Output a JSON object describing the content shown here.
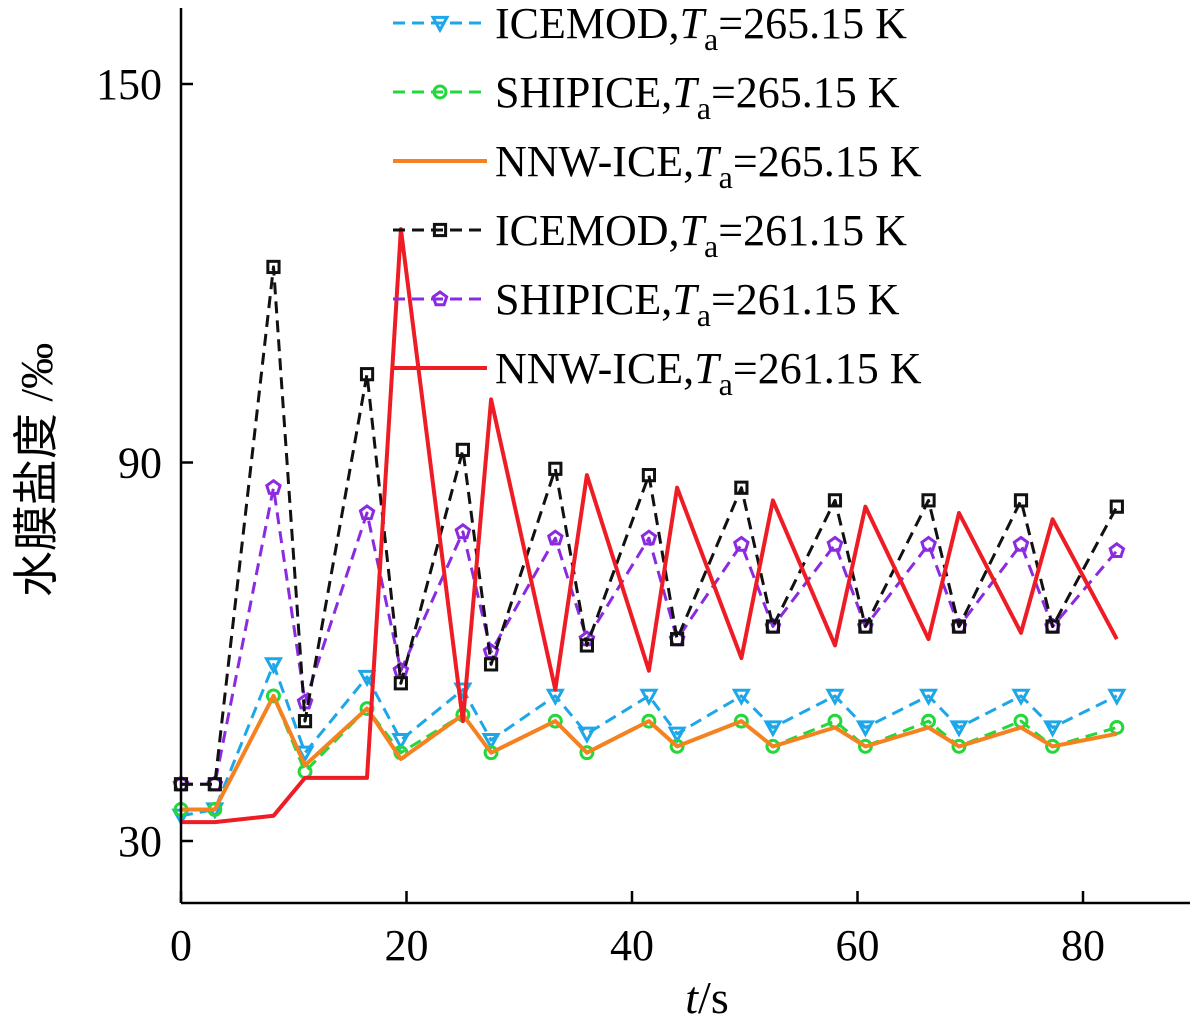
{
  "chart_data": {
    "type": "line",
    "xlabel_italic": "t",
    "xlabel_unit": "/s",
    "ylabel": "水膜盐度 /‰",
    "xlim": [
      0,
      90
    ],
    "ylim": [
      20,
      163
    ],
    "xticks": [
      0,
      20,
      40,
      60,
      80
    ],
    "xtick_labels": [
      "0",
      "20",
      "40",
      "60",
      "80"
    ],
    "yticks": [
      30,
      90,
      150
    ],
    "ytick_labels": [
      "30",
      "90",
      "150"
    ],
    "grid": false,
    "legend_position": "top-right",
    "series": [
      {
        "name_main": "ICEMOD,",
        "name_var": "T",
        "name_sub": "a",
        "name_value": "=265.15 K",
        "color": "#1ea7e8",
        "linestyle": "dashed",
        "marker": "triangle-down",
        "x": [
          0,
          3,
          8.2,
          11,
          16.5,
          19.5,
          25,
          27.5,
          33.2,
          36,
          41.5,
          44,
          49.7,
          52.5,
          58,
          60.7,
          66.3,
          69,
          74.5,
          77.3,
          83
        ],
        "y": [
          34,
          35,
          58,
          44,
          56,
          46,
          54,
          46,
          53,
          47,
          53,
          47,
          53,
          48,
          53,
          48,
          53,
          48,
          53,
          48,
          53
        ]
      },
      {
        "name_main": "SHIPICE,",
        "name_var": "T",
        "name_sub": "a",
        "name_value": "=265.15 K",
        "color": "#22d83a",
        "linestyle": "dashed",
        "marker": "circle",
        "x": [
          0,
          3,
          8.2,
          11,
          16.5,
          19.5,
          25,
          27.5,
          33.2,
          36,
          41.5,
          44,
          49.7,
          52.5,
          58,
          60.7,
          66.3,
          69,
          74.5,
          77.3,
          83
        ],
        "y": [
          35,
          35,
          53,
          41,
          51,
          44,
          50,
          44,
          49,
          44,
          49,
          45,
          49,
          45,
          49,
          45,
          49,
          45,
          49,
          45,
          48
        ]
      },
      {
        "name_main": "NNW-ICE,",
        "name_var": "T",
        "name_sub": "a",
        "name_value": "=265.15 K",
        "color": "#f58220",
        "linestyle": "solid",
        "marker": "none",
        "x": [
          0,
          3,
          8.2,
          11,
          16.5,
          19.5,
          25,
          27.5,
          33.2,
          36,
          41.5,
          44,
          49.7,
          52.5,
          58,
          60.7,
          66.3,
          69,
          74.5,
          77.3,
          83
        ],
        "y": [
          35,
          35,
          53,
          42,
          51,
          43,
          50,
          44,
          49,
          44,
          49,
          45,
          49,
          45,
          48,
          45,
          48,
          45,
          48,
          45,
          47
        ]
      },
      {
        "name_main": "ICEMOD,",
        "name_var": "T",
        "name_sub": "a",
        "name_value": "=261.15 K",
        "color": "#111111",
        "linestyle": "dashed",
        "marker": "square",
        "x": [
          0,
          3,
          8.2,
          11,
          16.5,
          19.5,
          25,
          27.5,
          33.2,
          36,
          41.5,
          44,
          49.7,
          52.5,
          58,
          60.7,
          66.3,
          69,
          74.5,
          77.3,
          83
        ],
        "y": [
          39,
          39,
          121,
          49,
          104,
          55,
          92,
          58,
          89,
          61,
          88,
          62,
          86,
          64,
          84,
          64,
          84,
          64,
          84,
          64,
          83
        ]
      },
      {
        "name_main": "SHIPICE,",
        "name_var": "T",
        "name_sub": "a",
        "name_value": "=261.15 K",
        "color": "#8a2be2",
        "linestyle": "dashed",
        "marker": "pentagon",
        "x": [
          0,
          3,
          8.2,
          11,
          16.5,
          19.5,
          25,
          27.5,
          33.2,
          36,
          41.5,
          44,
          49.7,
          52.5,
          58,
          60.7,
          66.3,
          69,
          74.5,
          77.3,
          83
        ],
        "y": [
          39,
          39,
          86,
          52,
          82,
          57,
          79,
          60,
          78,
          62,
          78,
          62,
          77,
          64,
          77,
          64,
          77,
          64,
          77,
          64,
          76
        ]
      },
      {
        "name_main": "NNW-ICE,",
        "name_var": "T",
        "name_sub": "a",
        "name_value": "=261.15 K",
        "color": "#ee1c25",
        "linestyle": "solid",
        "marker": "none",
        "x": [
          0,
          3,
          8.2,
          11,
          16.5,
          19.5,
          25,
          27.5,
          33.2,
          36,
          41.5,
          44,
          49.7,
          52.5,
          58,
          60.7,
          66.3,
          69,
          74.5,
          77.3,
          83
        ],
        "y": [
          33,
          33,
          34,
          40,
          40,
          127,
          49,
          100,
          54,
          88,
          57,
          86,
          59,
          84,
          61,
          83,
          62,
          82,
          63,
          81,
          62
        ]
      }
    ]
  }
}
